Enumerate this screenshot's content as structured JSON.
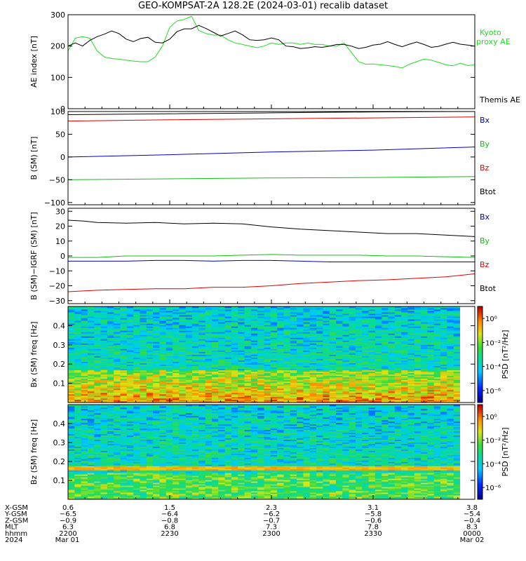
{
  "title": "GEO-KOMPSAT-2A 128.2E (2024-03-01) recalib dataset",
  "colors": {
    "black": "#000000",
    "red": "#e00000",
    "green": "#10c010",
    "blue": "#0000c0",
    "proxy_green": "#22dd22"
  },
  "chart_data": [
    {
      "type": "line",
      "ylabel": "AE index [nT]",
      "ylim": [
        0,
        300
      ],
      "yticks": [
        "0",
        "100",
        "200",
        "300"
      ],
      "legend": [
        {
          "label": "Kyoto proxy AE",
          "color": "#22dd22"
        },
        {
          "label": "Themis AE",
          "color": "#000000"
        }
      ],
      "series": [
        {
          "name": "Kyoto proxy AE",
          "color": "#22dd22",
          "x": [
            0,
            10,
            20,
            30,
            40,
            50,
            60,
            70,
            80,
            90,
            100,
            110,
            120,
            130,
            140,
            150,
            160,
            170,
            180,
            190,
            200,
            210,
            220,
            230,
            240,
            250,
            260,
            270,
            280,
            290,
            300,
            310,
            320,
            330,
            340,
            350,
            360,
            370,
            380,
            390,
            400,
            410,
            420,
            430,
            440,
            450,
            460,
            470,
            480,
            490,
            500,
            510,
            520,
            530,
            540,
            550,
            560
          ],
          "y": [
            185,
            225,
            230,
            225,
            185,
            165,
            160,
            158,
            155,
            152,
            150,
            150,
            165,
            200,
            260,
            280,
            285,
            295,
            250,
            240,
            235,
            235,
            220,
            210,
            205,
            200,
            195,
            200,
            210,
            205,
            210,
            210,
            205,
            210,
            205,
            205,
            200,
            200,
            210,
            180,
            150,
            142,
            143,
            140,
            138,
            135,
            130,
            142,
            150,
            158,
            155,
            148,
            140,
            137,
            145,
            138,
            140
          ]
        },
        {
          "name": "Themis AE",
          "color": "#000000",
          "x": [
            0,
            10,
            20,
            30,
            40,
            50,
            60,
            70,
            80,
            90,
            100,
            110,
            120,
            130,
            140,
            150,
            160,
            170,
            180,
            190,
            200,
            210,
            220,
            230,
            240,
            250,
            260,
            270,
            280,
            290,
            300,
            310,
            320,
            330,
            340,
            350,
            360,
            370,
            380,
            390,
            400,
            410,
            420,
            430,
            440,
            450,
            460,
            470,
            480,
            490,
            500,
            510,
            520,
            530,
            540,
            550,
            560
          ],
          "y": [
            200,
            210,
            200,
            218,
            230,
            238,
            248,
            240,
            222,
            214,
            224,
            228,
            212,
            210,
            222,
            246,
            255,
            255,
            266,
            256,
            244,
            232,
            240,
            248,
            236,
            220,
            218,
            220,
            226,
            220,
            200,
            198,
            192,
            194,
            198,
            196,
            200,
            205,
            205,
            200,
            192,
            196,
            203,
            206,
            214,
            205,
            198,
            206,
            213,
            205,
            196,
            199,
            206,
            212,
            206,
            203,
            200
          ]
        }
      ]
    },
    {
      "type": "line",
      "ylabel": "B (SM) [nT]",
      "ylim": [
        -105,
        100
      ],
      "yticks": [
        "100",
        "50",
        "0",
        "−50",
        "−100"
      ],
      "legend": [
        {
          "label": "Bx",
          "color": "#0000c0"
        },
        {
          "label": "By",
          "color": "#10c010"
        },
        {
          "label": "Bz",
          "color": "#e00000"
        },
        {
          "label": "Btot",
          "color": "#000000"
        }
      ],
      "series": [
        {
          "name": "Btot",
          "color": "#000000",
          "x": [
            0,
            140,
            280,
            420,
            560
          ],
          "y": [
            93,
            95,
            97,
            99,
            100
          ]
        },
        {
          "name": "Bz",
          "color": "#e00000",
          "x": [
            0,
            140,
            280,
            420,
            560
          ],
          "y": [
            79,
            82,
            84,
            86,
            88
          ]
        },
        {
          "name": "Bx",
          "color": "#0000c0",
          "x": [
            0,
            140,
            280,
            420,
            560
          ],
          "y": [
            0,
            5,
            11,
            15,
            22
          ]
        },
        {
          "name": "By",
          "color": "#10c010",
          "x": [
            0,
            140,
            280,
            420,
            560
          ],
          "y": [
            -50,
            -48,
            -46,
            -45,
            -43
          ]
        }
      ]
    },
    {
      "type": "line",
      "ylabel": "B (SM)−IGRF (SM) [nT]",
      "ylim": [
        -32,
        32
      ],
      "yticks": [
        "30",
        "20",
        "10",
        "0",
        "−10",
        "−20",
        "−30"
      ],
      "legend": [
        {
          "label": "Bx",
          "color": "#0000c0"
        },
        {
          "label": "By",
          "color": "#10c010"
        },
        {
          "label": "Bz",
          "color": "#e00000"
        },
        {
          "label": "Btot",
          "color": "#000000"
        }
      ],
      "series": [
        {
          "name": "Btot",
          "color": "#000000",
          "x": [
            0,
            20,
            40,
            80,
            120,
            160,
            200,
            240,
            280,
            320,
            360,
            400,
            440,
            480,
            520,
            560
          ],
          "y": [
            24,
            23.5,
            22.5,
            22,
            22.5,
            21.5,
            22,
            21.5,
            19.5,
            18,
            17,
            16,
            15,
            15,
            14,
            13
          ]
        },
        {
          "name": "By",
          "color": "#10c010",
          "x": [
            0,
            40,
            80,
            120,
            160,
            200,
            240,
            280,
            320,
            360,
            400,
            440,
            480,
            520,
            560
          ],
          "y": [
            -1,
            -1,
            0,
            0,
            0,
            0,
            0.5,
            1,
            0.5,
            0.5,
            0.5,
            0,
            0,
            -0.5,
            -1
          ]
        },
        {
          "name": "Bx",
          "color": "#0000c0",
          "x": [
            0,
            40,
            80,
            120,
            160,
            200,
            240,
            280,
            320,
            360,
            400,
            440,
            480,
            520,
            560
          ],
          "y": [
            -3.5,
            -3.5,
            -3.5,
            -3,
            -3,
            -3.5,
            -3,
            -3,
            -3.5,
            -4,
            -4,
            -4,
            -4,
            -4,
            -4
          ]
        },
        {
          "name": "Bz",
          "color": "#e00000",
          "x": [
            0,
            40,
            80,
            120,
            160,
            200,
            240,
            280,
            320,
            360,
            400,
            440,
            480,
            520,
            560
          ],
          "y": [
            -24,
            -23,
            -22.5,
            -22,
            -22,
            -21,
            -21,
            -20,
            -18.5,
            -17.5,
            -16.5,
            -16,
            -15,
            -14,
            -12
          ]
        }
      ]
    },
    {
      "type": "heatmap",
      "ylabel": "Bx (SM) freq [Hz]",
      "ylim": [
        0,
        0.5
      ],
      "yticks": [
        "0.1",
        "0.2",
        "0.3",
        "0.4"
      ],
      "colorbar_label": "PSD [nT²/Hz]",
      "colorbar_ticks": [
        "10⁰",
        "10⁻²",
        "10⁻⁴",
        "10⁻⁶"
      ],
      "colorbar_range": [
        -7,
        1
      ]
    },
    {
      "type": "heatmap",
      "ylabel": "Bz (SM) freq [Hz]",
      "ylim": [
        0,
        0.5
      ],
      "yticks": [
        "0.1",
        "0.2",
        "0.3",
        "0.4"
      ],
      "colorbar_label": "PSD [nT²/Hz]",
      "colorbar_ticks": [
        "10⁰",
        "10⁻²",
        "10⁻⁴",
        "10⁻⁶"
      ],
      "colorbar_range": [
        -7,
        1
      ]
    }
  ],
  "xaxis": {
    "row_labels": [
      "X-GSM",
      "Y-GSM",
      "Z-GSM",
      "MLT",
      "hhmm",
      "2024"
    ],
    "columns": [
      {
        "t": 0,
        "values": [
          "0.6",
          "−6.5",
          "−0.9",
          "6.3",
          "2200",
          "Mar 01"
        ]
      },
      {
        "t": 30,
        "values": [
          "1.5",
          "−6.4",
          "−0.8",
          "6.8",
          "2230",
          ""
        ]
      },
      {
        "t": 60,
        "values": [
          "2.3",
          "−6.2",
          "−0.7",
          "7.3",
          "2300",
          ""
        ]
      },
      {
        "t": 90,
        "values": [
          "3.1",
          "−5.8",
          "−0.6",
          "7.8",
          "2330",
          ""
        ]
      },
      {
        "t": 120,
        "values": [
          "3.8",
          "−5.4",
          "−0.4",
          "8.3",
          "0000",
          "Mar 02"
        ]
      }
    ]
  }
}
